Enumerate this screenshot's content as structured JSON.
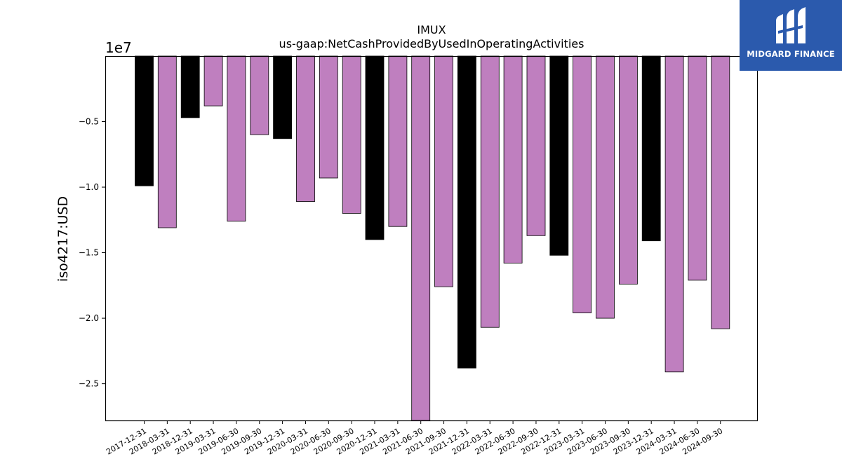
{
  "chart_data": {
    "type": "bar",
    "title": "IMUX",
    "subtitle": "us-gaap:NetCashProvidedByUsedInOperatingActivities",
    "ylabel": "iso4217:USD",
    "xlabel": "",
    "y_offset_label": "1e7",
    "ylim": [
      -27800000,
      0
    ],
    "y_ticks": [
      -5000000,
      -10000000,
      -15000000,
      -20000000,
      -25000000
    ],
    "y_tick_labels": [
      "−0.5",
      "−1.0",
      "−1.5",
      "−2.0",
      "−2.5"
    ],
    "grid": false,
    "colors": {
      "annual": "#000000",
      "quarterly": "#bf7fbf"
    },
    "categories": [
      "2017-12-31",
      "2018-03-31",
      "2018-12-31",
      "2019-03-31",
      "2019-06-30",
      "2019-09-30",
      "2019-12-31",
      "2020-03-31",
      "2020-06-30",
      "2020-09-30",
      "2020-12-31",
      "2021-03-31",
      "2021-06-30",
      "2021-09-30",
      "2021-12-31",
      "2022-03-31",
      "2022-06-30",
      "2022-09-30",
      "2022-12-31",
      "2023-03-31",
      "2023-06-30",
      "2023-09-30",
      "2023-12-31",
      "2024-03-31",
      "2024-06-30",
      "2024-09-30"
    ],
    "values": [
      -9900000,
      -13100000,
      -4700000,
      -3800000,
      -12600000,
      -6000000,
      -6300000,
      -11100000,
      -9300000,
      -12000000,
      -14000000,
      -13000000,
      -27800000,
      -17600000,
      -23800000,
      -20700000,
      -15800000,
      -13700000,
      -15200000,
      -19600000,
      -20000000,
      -17400000,
      -14100000,
      -24100000,
      -17100000,
      -20800000
    ],
    "bar_kind": [
      "annual",
      "quarterly",
      "annual",
      "quarterly",
      "quarterly",
      "quarterly",
      "annual",
      "quarterly",
      "quarterly",
      "quarterly",
      "annual",
      "quarterly",
      "quarterly",
      "quarterly",
      "annual",
      "quarterly",
      "quarterly",
      "quarterly",
      "annual",
      "quarterly",
      "quarterly",
      "quarterly",
      "annual",
      "quarterly",
      "quarterly",
      "quarterly"
    ]
  },
  "logo": {
    "text": "MIDGARD FINANCE",
    "icon": "midgard-logo-icon",
    "color": "#2b5aad"
  }
}
